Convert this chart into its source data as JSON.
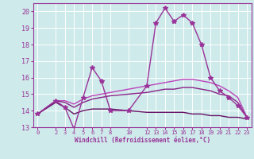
{
  "xlabel": "Windchill (Refroidissement éolien,°C)",
  "background_color": "#ceeaea",
  "grid_color": "#b8dede",
  "ylim": [
    13,
    20.5
  ],
  "xlim": [
    -0.5,
    23.5
  ],
  "yticks": [
    13,
    14,
    15,
    16,
    17,
    18,
    19,
    20
  ],
  "xticks": [
    0,
    2,
    3,
    4,
    5,
    6,
    7,
    8,
    10,
    12,
    13,
    14,
    15,
    16,
    17,
    18,
    19,
    20,
    21,
    22,
    23
  ],
  "series": [
    {
      "x": [
        0,
        2,
        3,
        4,
        5,
        6,
        7,
        8,
        10,
        12,
        13,
        14,
        15,
        16,
        17,
        18,
        19,
        20,
        21,
        22,
        23
      ],
      "y": [
        13.8,
        14.6,
        14.2,
        12.9,
        14.8,
        16.6,
        15.8,
        14.0,
        14.0,
        15.5,
        19.3,
        20.2,
        19.4,
        19.8,
        19.3,
        18.0,
        16.0,
        15.2,
        14.8,
        14.3,
        13.6
      ],
      "color": "#993399",
      "marker": "*",
      "markersize": 4,
      "linewidth": 1.0
    },
    {
      "x": [
        0,
        2,
        3,
        4,
        5,
        6,
        7,
        8,
        10,
        12,
        13,
        14,
        15,
        16,
        17,
        18,
        19,
        20,
        21,
        22,
        23
      ],
      "y": [
        13.8,
        14.6,
        14.6,
        14.4,
        14.7,
        14.9,
        15.0,
        15.1,
        15.3,
        15.5,
        15.6,
        15.7,
        15.8,
        15.9,
        15.9,
        15.8,
        15.7,
        15.5,
        15.2,
        14.8,
        13.6
      ],
      "color": "#bb44bb",
      "marker": null,
      "markersize": 0,
      "linewidth": 1.0
    },
    {
      "x": [
        0,
        2,
        3,
        4,
        5,
        6,
        7,
        8,
        10,
        12,
        13,
        14,
        15,
        16,
        17,
        18,
        19,
        20,
        21,
        22,
        23
      ],
      "y": [
        13.8,
        14.6,
        14.5,
        14.2,
        14.5,
        14.7,
        14.8,
        14.9,
        15.0,
        15.1,
        15.2,
        15.3,
        15.3,
        15.4,
        15.4,
        15.3,
        15.2,
        15.0,
        14.9,
        14.5,
        13.6
      ],
      "color": "#882288",
      "marker": null,
      "markersize": 0,
      "linewidth": 1.0
    },
    {
      "x": [
        0,
        2,
        3,
        4,
        5,
        6,
        7,
        8,
        10,
        12,
        13,
        14,
        15,
        16,
        17,
        18,
        19,
        20,
        21,
        22,
        23
      ],
      "y": [
        13.8,
        14.5,
        14.2,
        13.8,
        14.0,
        14.1,
        14.1,
        14.1,
        14.0,
        13.9,
        13.9,
        13.9,
        13.9,
        13.9,
        13.8,
        13.8,
        13.7,
        13.7,
        13.6,
        13.6,
        13.5
      ],
      "color": "#661166",
      "marker": null,
      "markersize": 0,
      "linewidth": 1.0
    }
  ]
}
